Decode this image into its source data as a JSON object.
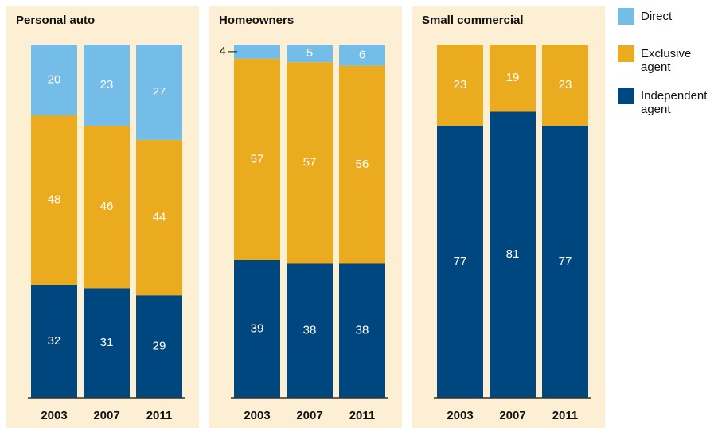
{
  "chart_data": [
    {
      "type": "stacked-bar",
      "title": "Personal auto",
      "categories": [
        "2003",
        "2007",
        "2011"
      ],
      "ylim": [
        0,
        100
      ],
      "series": [
        {
          "name": "Direct",
          "color": "#74bde9",
          "values": [
            20,
            23,
            27
          ]
        },
        {
          "name": "Exclusive agent",
          "color": "#ebab1f",
          "values": [
            48,
            46,
            44
          ]
        },
        {
          "name": "Independent agent",
          "color": "#00467f",
          "values": [
            32,
            31,
            29
          ]
        }
      ]
    },
    {
      "type": "stacked-bar",
      "title": "Homeowners",
      "categories": [
        "2003",
        "2007",
        "2011"
      ],
      "ylim": [
        0,
        100
      ],
      "series": [
        {
          "color": "#74bde9",
          "values": [
            4,
            5,
            6
          ]
        },
        {
          "color": "#ebab1f",
          "values": [
            57,
            57,
            56
          ]
        },
        {
          "color": "#00467f",
          "values": [
            39,
            38,
            38
          ]
        }
      ]
    },
    {
      "type": "stacked-bar",
      "title": "Small commercial",
      "categories": [
        "2003",
        "2007",
        "2011"
      ],
      "ylim": [
        0,
        100
      ],
      "series": [
        {
          "color": "#ebab1f",
          "values": [
            23,
            19,
            23
          ]
        },
        {
          "color": "#00467f",
          "values": [
            77,
            81,
            77
          ]
        }
      ]
    }
  ]
}
